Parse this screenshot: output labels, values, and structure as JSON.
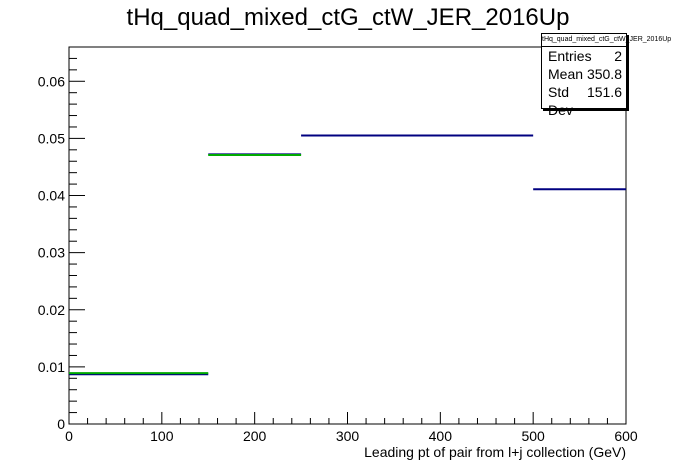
{
  "chart_data": {
    "type": "bar",
    "title": "tHq_quad_mixed_ctG_ctW_JER_2016Up",
    "xlabel": "Leading pt of pair from l+j collection (GeV)",
    "ylabel": "",
    "xlim": [
      0,
      600
    ],
    "ylim": [
      0,
      0.066
    ],
    "xticks": [
      "0",
      "100",
      "200",
      "300",
      "400",
      "500",
      "600"
    ],
    "yticks": [
      "0",
      "0.01",
      "0.02",
      "0.03",
      "0.04",
      "0.05",
      "0.06"
    ],
    "grid": false,
    "series": [
      {
        "color": "#000080",
        "bins": [
          {
            "x0": 0,
            "x1": 150,
            "y": 0.0087
          },
          {
            "x0": 150,
            "x1": 250,
            "y": 0.0472
          },
          {
            "x0": 250,
            "x1": 500,
            "y": 0.0505
          },
          {
            "x0": 500,
            "x1": 600,
            "y": 0.0411
          }
        ]
      },
      {
        "color": "#00aa00",
        "bins": [
          {
            "x0": 0,
            "x1": 150,
            "y": 0.0089
          },
          {
            "x0": 150,
            "x1": 250,
            "y": 0.0471
          }
        ]
      }
    ],
    "stats": {
      "name": "tHq_quad_mixed_ctG_ctW_JER_2016Up",
      "entries_label": "Entries",
      "entries": "2",
      "mean_label": "Mean",
      "mean": "350.8",
      "stddev_label": "Std Dev",
      "stddev": "151.6"
    }
  }
}
